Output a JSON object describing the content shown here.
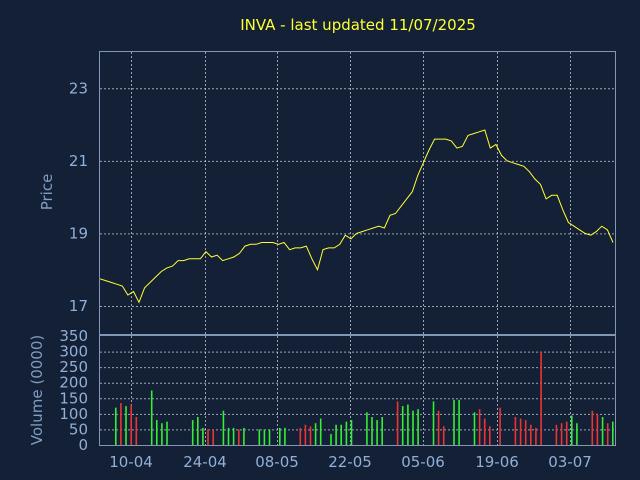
{
  "chart_data": [
    {
      "type": "line",
      "title": "INVA - last updated 11/07/2025",
      "ylabel": "Price",
      "ylim": [
        16.2,
        24.0
      ],
      "yticks": [
        17,
        19,
        21,
        23
      ],
      "grid": true,
      "line_color": "#ffff33",
      "series": [
        {
          "values": [
            17.75,
            17.7,
            17.65,
            17.6,
            17.55,
            17.3,
            17.4,
            17.1,
            17.5,
            17.65,
            17.8,
            17.95,
            18.05,
            18.1,
            18.25,
            18.25,
            18.3,
            18.3,
            18.3,
            18.5,
            18.35,
            18.4,
            18.25,
            18.3,
            18.35,
            18.45,
            18.65,
            18.7,
            18.7,
            18.75,
            18.75,
            18.75,
            18.7,
            18.75,
            18.55,
            18.6,
            18.6,
            18.65,
            18.3,
            18.0,
            18.55,
            18.6,
            18.6,
            18.7,
            18.95,
            18.85,
            19.0,
            19.05,
            19.1,
            19.15,
            19.2,
            19.15,
            19.5,
            19.55,
            19.75,
            19.95,
            20.15,
            20.6,
            20.95,
            21.3,
            21.6,
            21.6,
            21.6,
            21.55,
            21.35,
            21.4,
            21.7,
            21.75,
            21.8,
            21.85,
            21.35,
            21.45,
            21.15,
            21.0,
            20.95,
            20.9,
            20.85,
            20.7,
            20.5,
            20.35,
            19.95,
            20.05,
            20.05,
            19.65,
            19.3,
            19.2,
            19.1,
            19.0,
            18.95,
            19.05,
            19.2,
            19.1,
            18.75
          ]
        }
      ]
    },
    {
      "type": "bar",
      "ylabel": "Volume (0000)",
      "ylim": [
        0,
        350
      ],
      "yticks": [
        0,
        50,
        100,
        150,
        200,
        250,
        300,
        350
      ],
      "grid": true,
      "up_color": "#33ee33",
      "down_color": "#ee3333",
      "values": [
        120,
        135,
        125,
        130,
        90,
        0,
        0,
        175,
        80,
        70,
        75,
        0,
        0,
        0,
        0,
        80,
        90,
        55,
        50,
        50,
        0,
        110,
        55,
        55,
        50,
        55,
        0,
        0,
        50,
        50,
        50,
        0,
        55,
        55,
        0,
        0,
        55,
        65,
        60,
        70,
        85,
        0,
        35,
        65,
        65,
        75,
        80,
        0,
        0,
        105,
        90,
        80,
        90,
        0,
        0,
        140,
        125,
        130,
        110,
        115,
        0,
        0,
        140,
        110,
        60,
        0,
        145,
        145,
        0,
        0,
        105,
        115,
        85,
        60,
        0,
        120,
        0,
        0,
        90,
        85,
        80,
        65,
        55,
        300,
        0,
        0,
        65,
        70,
        75,
        95,
        70,
        0,
        0,
        110,
        100,
        90,
        70,
        75
      ],
      "directions": [
        "u",
        "d",
        "u",
        "d",
        "d",
        "u",
        "u",
        "u",
        "u",
        "u",
        "u",
        "u",
        "u",
        "u",
        "u",
        "u",
        "u",
        "u",
        "d",
        "d",
        "u",
        "u",
        "u",
        "u",
        "d",
        "u",
        "u",
        "u",
        "u",
        "u",
        "u",
        "u",
        "u",
        "u",
        "d",
        "d",
        "d",
        "d",
        "d",
        "u",
        "u",
        "u",
        "u",
        "u",
        "u",
        "u",
        "u",
        "u",
        "u",
        "u",
        "u",
        "u",
        "u",
        "u",
        "u",
        "d",
        "u",
        "u",
        "u",
        "u",
        "u",
        "u",
        "u",
        "d",
        "d",
        "u",
        "u",
        "u",
        "u",
        "u",
        "u",
        "d",
        "d",
        "d",
        "u",
        "d",
        "d",
        "d",
        "d",
        "d",
        "d",
        "d",
        "d",
        "d",
        "u",
        "u",
        "d",
        "d",
        "d",
        "u",
        "u",
        "u",
        "u",
        "d",
        "d",
        "u",
        "d",
        "u"
      ]
    }
  ],
  "x_axis": {
    "tick_labels": [
      "10-04",
      "24-04",
      "08-05",
      "22-05",
      "05-06",
      "19-06",
      "03-07"
    ]
  }
}
